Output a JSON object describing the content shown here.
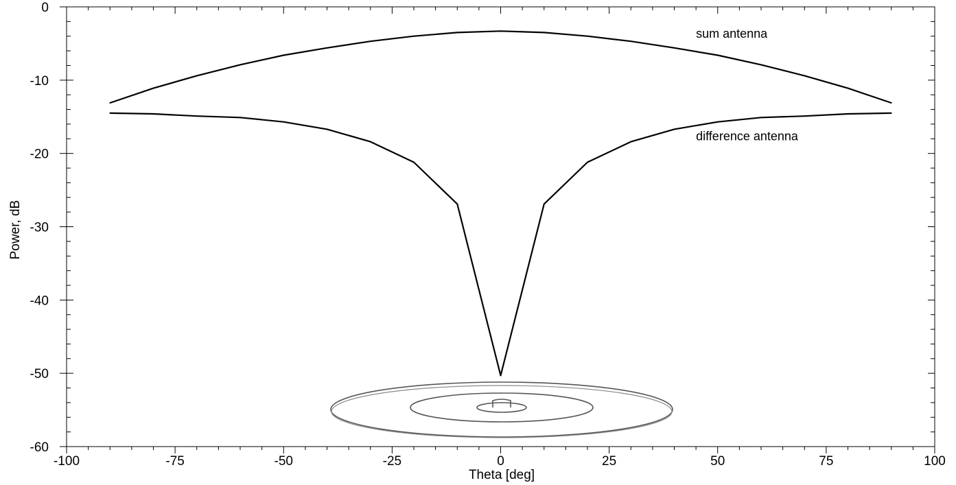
{
  "chart_data": {
    "type": "line",
    "xlabel": "Theta [deg]",
    "ylabel": "Power, dB",
    "xlim": [
      -100,
      100
    ],
    "ylim": [
      -60,
      0
    ],
    "x_ticks": [
      -100,
      -75,
      -50,
      -25,
      0,
      25,
      50,
      75,
      100
    ],
    "x_tick_labels": [
      "-100",
      "-75",
      "-50",
      "-25",
      "0",
      "25",
      "50",
      "75",
      "100"
    ],
    "x_minor_step": 5,
    "y_ticks": [
      0,
      -10,
      -20,
      -30,
      -40,
      -50,
      -60
    ],
    "y_tick_labels": [
      "0",
      "-10",
      "-20",
      "-30",
      "-40",
      "-50",
      "-60"
    ],
    "y_minor_step": 2,
    "grid": false,
    "legend": "none",
    "series": [
      {
        "x": [
          -90,
          -80,
          -70,
          -60,
          -50,
          -40,
          -30,
          -20,
          -10,
          0,
          10,
          20,
          30,
          40,
          50,
          60,
          70,
          80,
          90
        ],
        "values": [
          -13.1,
          -11.1,
          -9.4,
          -7.9,
          -6.6,
          -5.6,
          -4.7,
          -4.0,
          -3.5,
          -3.3,
          -3.5,
          -4.0,
          -4.7,
          -5.6,
          -6.6,
          -7.9,
          -9.4,
          -11.1,
          -13.1
        ]
      },
      {
        "x": [
          -90,
          -80,
          -70,
          -60,
          -50,
          -40,
          -30,
          -20,
          -10,
          0,
          10,
          20,
          30,
          40,
          50,
          60,
          70,
          80,
          90
        ],
        "values": [
          -14.5,
          -14.6,
          -14.9,
          -15.1,
          -15.7,
          -16.7,
          -18.4,
          -21.2,
          -26.9,
          -50.3,
          -26.9,
          -21.2,
          -18.4,
          -16.7,
          -15.7,
          -15.1,
          -14.9,
          -14.6,
          -14.5
        ]
      }
    ],
    "annotations": [
      {
        "text": "sum antenna",
        "x": 45,
        "y": -4.2
      },
      {
        "text": "difference antenna",
        "x": 45,
        "y": -18.2
      }
    ]
  }
}
